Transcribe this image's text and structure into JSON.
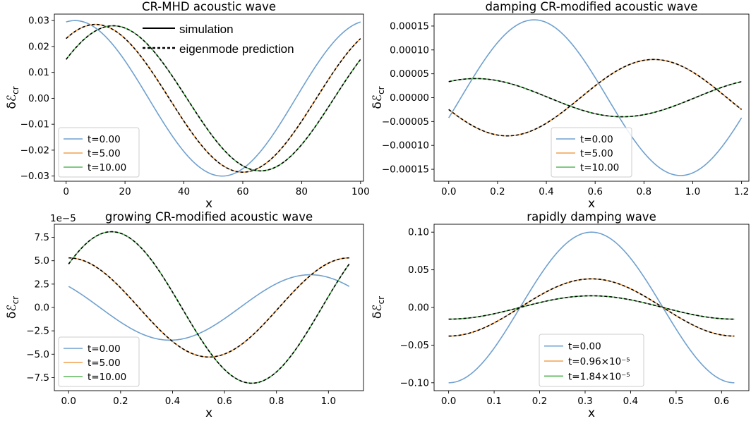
{
  "colors": {
    "t0": "#6fa0cf",
    "t1": "#f0a150",
    "t2": "#5bb55b",
    "prediction": "#000000"
  },
  "figure_annotations": {
    "simulation_label": "simulation",
    "prediction_label": "eigenmode prediction"
  },
  "chart_data": [
    {
      "type": "line",
      "title": "CR-MHD acoustic wave",
      "xlabel": "x",
      "ylabel": "δℰ",
      "ylabel_sub": "cr",
      "offset_text": "",
      "xlim": [
        -4,
        101
      ],
      "ylim": [
        -0.032,
        0.0325
      ],
      "xticks": [
        0,
        20,
        40,
        60,
        80,
        100
      ],
      "xtick_labels": [
        "0",
        "20",
        "40",
        "60",
        "80",
        "100"
      ],
      "yticks": [
        -0.03,
        -0.02,
        -0.01,
        0.0,
        0.01,
        0.02,
        0.03
      ],
      "ytick_labels": [
        "−0.03",
        "−0.02",
        "−0.01",
        "0.00",
        "0.01",
        "0.02",
        "0.03"
      ],
      "legend_loc": "lower left",
      "series": [
        {
          "name": "t=0.00",
          "x_range": [
            0,
            100
          ],
          "period": 100,
          "amplitude": 0.03,
          "phase_x": 3,
          "dashed_prediction": false
        },
        {
          "name": "t=5.00",
          "x_range": [
            0,
            100
          ],
          "period": 100,
          "amplitude": 0.0285,
          "phase_x": 10,
          "dashed_prediction": true
        },
        {
          "name": "t=10.00",
          "x_range": [
            0,
            100
          ],
          "period": 100,
          "amplitude": 0.028,
          "phase_x": 16,
          "dashed_prediction": true
        }
      ]
    },
    {
      "type": "line",
      "title": "damping CR-modified acoustic wave",
      "xlabel": "x",
      "ylabel": "δℰ",
      "ylabel_sub": "cr",
      "offset_text": "",
      "xlim": [
        -0.06,
        1.23
      ],
      "ylim": [
        -0.000175,
        0.000175
      ],
      "xticks": [
        0.0,
        0.2,
        0.4,
        0.6,
        0.8,
        1.0,
        1.2
      ],
      "xtick_labels": [
        "0.0",
        "0.2",
        "0.4",
        "0.6",
        "0.8",
        "1.0",
        "1.2"
      ],
      "yticks": [
        -0.00015,
        -0.0001,
        -5e-05,
        0.0,
        5e-05,
        0.0001,
        0.00015
      ],
      "ytick_labels": [
        "−0.00015",
        "−0.00010",
        "−0.00005",
        "0.00000",
        "0.00005",
        "0.00010",
        "0.00015"
      ],
      "legend_loc": "lower center",
      "series": [
        {
          "name": "t=0.00",
          "x_range": [
            0,
            1.2
          ],
          "period": 1.2,
          "amplitude": 0.000163,
          "phase_x": 0.35,
          "dashed_prediction": false
        },
        {
          "name": "t=5.00",
          "x_range": [
            0,
            1.2
          ],
          "period": 1.2,
          "amplitude": 8e-05,
          "phase_x": 0.84,
          "dashed_prediction": true
        },
        {
          "name": "t=10.00",
          "x_range": [
            0,
            1.2
          ],
          "period": 1.2,
          "amplitude": 4e-05,
          "phase_x": 0.11,
          "dashed_prediction": true
        }
      ]
    },
    {
      "type": "line",
      "title": "growing CR-modified acoustic wave",
      "xlabel": "x",
      "ylabel": "δℰ",
      "ylabel_sub": "cr",
      "offset_text": "1e−5",
      "xlim": [
        -0.055,
        1.135
      ],
      "ylim": [
        -8.9,
        8.9
      ],
      "xticks": [
        0.0,
        0.2,
        0.4,
        0.6,
        0.8,
        1.0
      ],
      "xtick_labels": [
        "0.0",
        "0.2",
        "0.4",
        "0.6",
        "0.8",
        "1.0"
      ],
      "yticks": [
        -7.5,
        -5.0,
        -2.5,
        0.0,
        2.5,
        5.0,
        7.5
      ],
      "ytick_labels": [
        "−7.5",
        "−5.0",
        "−2.5",
        "0.0",
        "2.5",
        "5.0",
        "7.5"
      ],
      "legend_loc": "lower left",
      "series": [
        {
          "name": "t=0.00",
          "x_range": [
            0,
            1.08
          ],
          "period": 1.08,
          "amplitude": 3.5,
          "phase_x": 0.93,
          "dashed_prediction": false
        },
        {
          "name": "t=5.00",
          "x_range": [
            0,
            1.08
          ],
          "period": 1.08,
          "amplitude": 5.3,
          "phase_x": 0.0,
          "dashed_prediction": true
        },
        {
          "name": "t=10.00",
          "x_range": [
            0,
            1.08
          ],
          "period": 1.08,
          "amplitude": 8.1,
          "phase_x": 0.165,
          "dashed_prediction": true
        }
      ]
    },
    {
      "type": "line",
      "title": "rapidly damping wave",
      "xlabel": "x",
      "ylabel": "δℰ",
      "ylabel_sub": "cr",
      "offset_text": "",
      "xlim": [
        -0.032,
        0.66
      ],
      "ylim": [
        -0.1105,
        0.1105
      ],
      "xticks": [
        0.0,
        0.1,
        0.2,
        0.3,
        0.4,
        0.5,
        0.6
      ],
      "xtick_labels": [
        "0.0",
        "0.1",
        "0.2",
        "0.3",
        "0.4",
        "0.5",
        "0.6"
      ],
      "yticks": [
        -0.1,
        -0.05,
        0.0,
        0.05,
        0.1
      ],
      "ytick_labels": [
        "−0.10",
        "−0.05",
        "0.00",
        "0.05",
        "0.10"
      ],
      "legend_loc": "lower center",
      "series": [
        {
          "name": "t=0.00",
          "x_range": [
            0,
            0.628
          ],
          "period": 0.628,
          "amplitude": 0.1,
          "phase_x": 0.314,
          "dashed_prediction": false
        },
        {
          "name": "t=0.96×10⁻⁵",
          "x_range": [
            0,
            0.628
          ],
          "period": 0.628,
          "amplitude": 0.038,
          "phase_x": 0.314,
          "dashed_prediction": true
        },
        {
          "name": "t=1.84×10⁻⁵",
          "x_range": [
            0,
            0.628
          ],
          "period": 0.628,
          "amplitude": 0.0155,
          "phase_x": 0.314,
          "dashed_prediction": true
        }
      ]
    }
  ]
}
